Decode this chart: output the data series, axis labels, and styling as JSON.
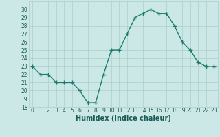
{
  "x": [
    0,
    1,
    2,
    3,
    4,
    5,
    6,
    7,
    8,
    9,
    10,
    11,
    12,
    13,
    14,
    15,
    16,
    17,
    18,
    19,
    20,
    21,
    22,
    23
  ],
  "y": [
    23,
    22,
    22,
    21,
    21,
    21,
    20,
    18.5,
    18.5,
    22,
    25,
    25,
    27,
    29,
    29.5,
    30,
    29.5,
    29.5,
    28,
    26,
    25,
    23.5,
    23,
    23
  ],
  "line_color": "#1a7a6e",
  "marker": "+",
  "marker_size": 4,
  "bg_color": "#cce8e6",
  "grid_color": "#aacfcc",
  "xlabel": "Humidex (Indice chaleur)",
  "ylim": [
    18,
    31
  ],
  "yticks": [
    18,
    19,
    20,
    21,
    22,
    23,
    24,
    25,
    26,
    27,
    28,
    29,
    30
  ],
  "xlim": [
    -0.5,
    23.5
  ],
  "xticks": [
    0,
    1,
    2,
    3,
    4,
    5,
    6,
    7,
    8,
    9,
    10,
    11,
    12,
    13,
    14,
    15,
    16,
    17,
    18,
    19,
    20,
    21,
    22,
    23
  ],
  "tick_fontsize": 5.5,
  "label_fontsize": 7,
  "line_width": 1.0
}
